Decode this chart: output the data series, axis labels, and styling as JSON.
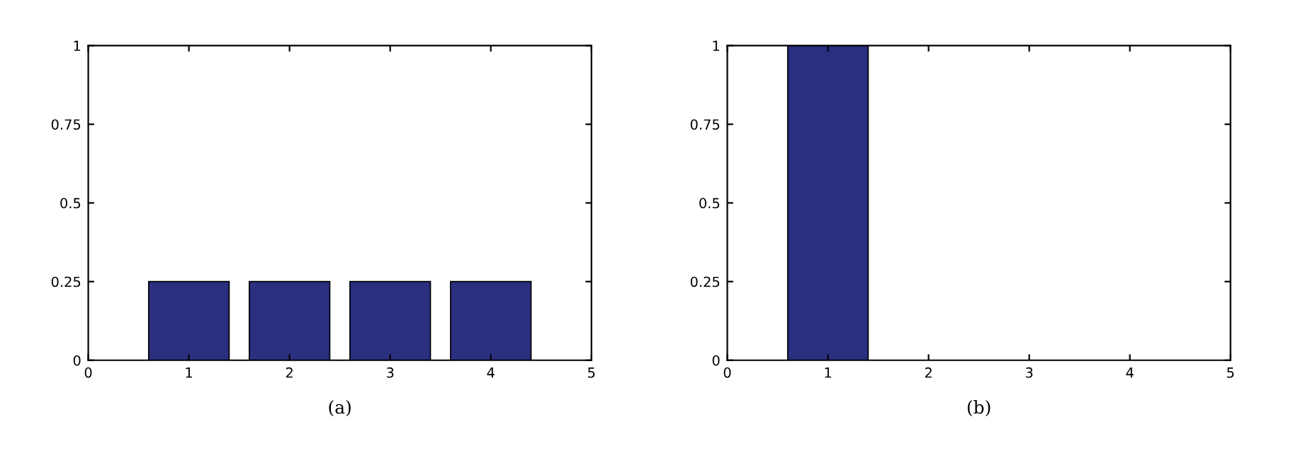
{
  "chart_data": [
    {
      "type": "bar",
      "xlabel": "(a)",
      "x": [
        1,
        2,
        3,
        4
      ],
      "values": [
        0.25,
        0.25,
        0.25,
        0.25
      ],
      "color": "#2b2f80",
      "xlim": [
        0,
        5
      ],
      "xticks": [
        0,
        1,
        2,
        3,
        4,
        5
      ],
      "ylim": [
        0,
        1
      ],
      "yticks": [
        0,
        0.25,
        0.5,
        0.75,
        1
      ],
      "grid": false,
      "legend": false
    },
    {
      "type": "bar",
      "xlabel": "(b)",
      "x": [
        1,
        2,
        3,
        4
      ],
      "values": [
        1,
        0,
        0,
        0
      ],
      "color": "#2b2f80",
      "xlim": [
        0,
        5
      ],
      "xticks": [
        0,
        1,
        2,
        3,
        4,
        5
      ],
      "ylim": [
        0,
        1
      ],
      "yticks": [
        0,
        0.25,
        0.5,
        0.75,
        1
      ],
      "grid": false,
      "legend": false
    }
  ]
}
